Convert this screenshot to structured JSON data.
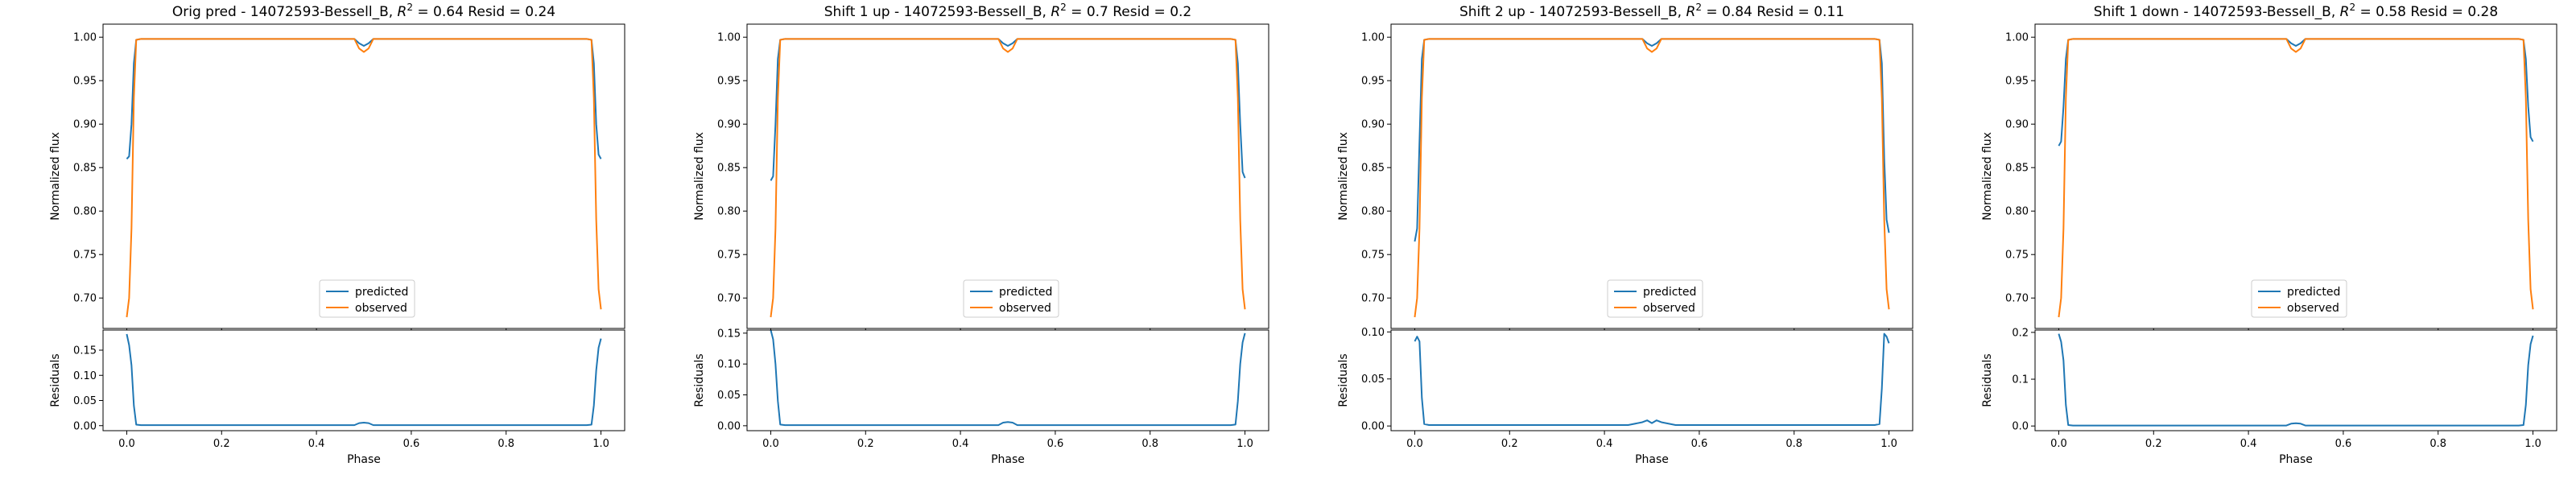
{
  "colors": {
    "predicted": "#1f77b4",
    "observed": "#ff7f0e"
  },
  "chart_data": [
    {
      "type": "line",
      "title": "Orig pred - 14072593-Bessell_B, $R^2 = 0.64$ Resid = 0.24",
      "top": {
        "ylabel": "Normalized flux",
        "ylim": [
          0.665,
          1.015
        ],
        "yticks": [
          0.7,
          0.75,
          0.8,
          0.85,
          0.9,
          0.95,
          1.0
        ],
        "yticklabels": [
          "0.70",
          "0.75",
          "0.80",
          "0.85",
          "0.90",
          "0.95",
          "1.00"
        ],
        "legend": {
          "placement": "lower center",
          "entries": [
            "predicted",
            "observed"
          ]
        },
        "series": [
          {
            "name": "predicted",
            "x": [
              0,
              0.005,
              0.01,
              0.015,
              0.02,
              0.03,
              0.48,
              0.49,
              0.5,
              0.51,
              0.52,
              0.97,
              0.98,
              0.985,
              0.99,
              0.995,
              1.0
            ],
            "y": [
              0.86,
              0.863,
              0.9,
              0.97,
              0.997,
              0.998,
              0.998,
              0.993,
              0.99,
              0.993,
              0.998,
              0.998,
              0.997,
              0.97,
              0.9,
              0.865,
              0.86
            ]
          },
          {
            "name": "observed",
            "x": [
              0,
              0.005,
              0.01,
              0.015,
              0.02,
              0.03,
              0.48,
              0.49,
              0.5,
              0.51,
              0.52,
              0.97,
              0.98,
              0.985,
              0.99,
              0.995,
              1.0
            ],
            "y": [
              0.678,
              0.7,
              0.78,
              0.93,
              0.997,
              0.998,
              0.998,
              0.987,
              0.983,
              0.987,
              0.998,
              0.998,
              0.997,
              0.93,
              0.79,
              0.71,
              0.687
            ]
          }
        ]
      },
      "bottom": {
        "ylabel": "Residuals",
        "xlabel": "Phase",
        "ylim": [
          -0.01,
          0.19
        ],
        "yticks": [
          0.0,
          0.05,
          0.1,
          0.15
        ],
        "yticklabels": [
          "0.00",
          "0.05",
          "0.10",
          "0.15"
        ],
        "xlim": [
          -0.05,
          1.05
        ],
        "xticks": [
          0.0,
          0.2,
          0.4,
          0.6,
          0.8,
          1.0
        ],
        "xticklabels": [
          "0.0",
          "0.2",
          "0.4",
          "0.6",
          "0.8",
          "1.0"
        ],
        "series": [
          {
            "name": "residuals",
            "x": [
              0,
              0.005,
              0.01,
              0.015,
              0.02,
              0.03,
              0.48,
              0.49,
              0.5,
              0.51,
              0.52,
              0.97,
              0.98,
              0.985,
              0.99,
              0.995,
              1.0
            ],
            "y": [
              0.182,
              0.16,
              0.12,
              0.04,
              0.002,
              0.001,
              0.001,
              0.005,
              0.006,
              0.005,
              0.001,
              0.001,
              0.002,
              0.04,
              0.11,
              0.155,
              0.173
            ]
          }
        ]
      }
    },
    {
      "type": "line",
      "title": "Shift 1 up - 14072593-Bessell_B, $R^2 = 0.7$ Resid = 0.2",
      "top": {
        "ylabel": "Normalized flux",
        "ylim": [
          0.665,
          1.015
        ],
        "yticks": [
          0.7,
          0.75,
          0.8,
          0.85,
          0.9,
          0.95,
          1.0
        ],
        "yticklabels": [
          "0.70",
          "0.75",
          "0.80",
          "0.85",
          "0.90",
          "0.95",
          "1.00"
        ],
        "legend": {
          "placement": "lower center",
          "entries": [
            "predicted",
            "observed"
          ]
        },
        "series": [
          {
            "name": "predicted",
            "x": [
              0,
              0.005,
              0.01,
              0.015,
              0.02,
              0.03,
              0.48,
              0.49,
              0.5,
              0.51,
              0.52,
              0.97,
              0.98,
              0.985,
              0.99,
              0.995,
              1.0
            ],
            "y": [
              0.835,
              0.84,
              0.9,
              0.975,
              0.997,
              0.998,
              0.998,
              0.993,
              0.99,
              0.993,
              0.998,
              0.998,
              0.997,
              0.97,
              0.9,
              0.845,
              0.838
            ]
          },
          {
            "name": "observed",
            "x": [
              0,
              0.005,
              0.01,
              0.015,
              0.02,
              0.03,
              0.48,
              0.49,
              0.5,
              0.51,
              0.52,
              0.97,
              0.98,
              0.985,
              0.99,
              0.995,
              1.0
            ],
            "y": [
              0.678,
              0.7,
              0.78,
              0.93,
              0.997,
              0.998,
              0.998,
              0.987,
              0.983,
              0.987,
              0.998,
              0.998,
              0.997,
              0.93,
              0.79,
              0.71,
              0.687
            ]
          }
        ]
      },
      "bottom": {
        "ylabel": "Residuals",
        "xlabel": "Phase",
        "ylim": [
          -0.008,
          0.155
        ],
        "yticks": [
          0.0,
          0.05,
          0.1,
          0.15
        ],
        "yticklabels": [
          "0.00",
          "0.05",
          "0.10",
          "0.15"
        ],
        "xlim": [
          -0.05,
          1.05
        ],
        "xticks": [
          0.0,
          0.2,
          0.4,
          0.6,
          0.8,
          1.0
        ],
        "xticklabels": [
          "0.0",
          "0.2",
          "0.4",
          "0.6",
          "0.8",
          "1.0"
        ],
        "series": [
          {
            "name": "residuals",
            "x": [
              0,
              0.005,
              0.01,
              0.015,
              0.02,
              0.03,
              0.48,
              0.49,
              0.5,
              0.51,
              0.52,
              0.97,
              0.98,
              0.985,
              0.99,
              0.995,
              1.0
            ],
            "y": [
              0.155,
              0.14,
              0.1,
              0.04,
              0.002,
              0.001,
              0.001,
              0.005,
              0.006,
              0.005,
              0.001,
              0.001,
              0.002,
              0.04,
              0.1,
              0.135,
              0.15
            ]
          }
        ]
      }
    },
    {
      "type": "line",
      "title": "Shift 2 up - 14072593-Bessell_B, $R^2 = 0.84$ Resid = 0.11",
      "top": {
        "ylabel": "Normalized flux",
        "ylim": [
          0.665,
          1.015
        ],
        "yticks": [
          0.7,
          0.75,
          0.8,
          0.85,
          0.9,
          0.95,
          1.0
        ],
        "yticklabels": [
          "0.70",
          "0.75",
          "0.80",
          "0.85",
          "0.90",
          "0.95",
          "1.00"
        ],
        "legend": {
          "placement": "lower center",
          "entries": [
            "predicted",
            "observed"
          ]
        },
        "series": [
          {
            "name": "predicted",
            "x": [
              0,
              0.005,
              0.01,
              0.015,
              0.02,
              0.03,
              0.48,
              0.49,
              0.5,
              0.51,
              0.52,
              0.97,
              0.98,
              0.985,
              0.99,
              0.995,
              1.0
            ],
            "y": [
              0.765,
              0.78,
              0.88,
              0.975,
              0.997,
              0.998,
              0.998,
              0.993,
              0.99,
              0.993,
              0.998,
              0.998,
              0.997,
              0.97,
              0.86,
              0.79,
              0.775
            ]
          },
          {
            "name": "observed",
            "x": [
              0,
              0.005,
              0.01,
              0.015,
              0.02,
              0.03,
              0.48,
              0.49,
              0.5,
              0.51,
              0.52,
              0.97,
              0.98,
              0.985,
              0.99,
              0.995,
              1.0
            ],
            "y": [
              0.678,
              0.7,
              0.78,
              0.93,
              0.997,
              0.998,
              0.998,
              0.987,
              0.983,
              0.987,
              0.998,
              0.998,
              0.997,
              0.93,
              0.79,
              0.71,
              0.687
            ]
          }
        ]
      },
      "bottom": {
        "ylabel": "Residuals",
        "xlabel": "Phase",
        "ylim": [
          -0.005,
          0.102
        ],
        "yticks": [
          0.0,
          0.05,
          0.1
        ],
        "yticklabels": [
          "0.00",
          "0.05",
          "0.10"
        ],
        "xlim": [
          -0.05,
          1.05
        ],
        "xticks": [
          0.0,
          0.2,
          0.4,
          0.6,
          0.8,
          1.0
        ],
        "xticklabels": [
          "0.0",
          "0.2",
          "0.4",
          "0.6",
          "0.8",
          "1.0"
        ],
        "series": [
          {
            "name": "residuals",
            "x": [
              0,
              0.005,
              0.01,
              0.015,
              0.02,
              0.03,
              0.45,
              0.48,
              0.49,
              0.5,
              0.51,
              0.52,
              0.55,
              0.97,
              0.98,
              0.985,
              0.99,
              0.995,
              1.0
            ],
            "y": [
              0.09,
              0.095,
              0.09,
              0.03,
              0.002,
              0.001,
              0.001,
              0.004,
              0.006,
              0.003,
              0.006,
              0.004,
              0.001,
              0.001,
              0.002,
              0.04,
              0.098,
              0.095,
              0.088
            ]
          }
        ]
      }
    },
    {
      "type": "line",
      "title": "Shift 1 down - 14072593-Bessell_B, $R^2 = 0.58$ Resid = 0.28",
      "top": {
        "ylabel": "Normalized flux",
        "ylim": [
          0.665,
          1.015
        ],
        "yticks": [
          0.7,
          0.75,
          0.8,
          0.85,
          0.9,
          0.95,
          1.0
        ],
        "yticklabels": [
          "0.70",
          "0.75",
          "0.80",
          "0.85",
          "0.90",
          "0.95",
          "1.00"
        ],
        "legend": {
          "placement": "lower center",
          "entries": [
            "predicted",
            "observed"
          ]
        },
        "series": [
          {
            "name": "predicted",
            "x": [
              0,
              0.005,
              0.01,
              0.015,
              0.02,
              0.03,
              0.48,
              0.49,
              0.5,
              0.51,
              0.52,
              0.97,
              0.98,
              0.985,
              0.99,
              0.995,
              1.0
            ],
            "y": [
              0.875,
              0.88,
              0.92,
              0.975,
              0.997,
              0.998,
              0.998,
              0.993,
              0.99,
              0.993,
              0.998,
              0.998,
              0.997,
              0.975,
              0.92,
              0.885,
              0.88
            ]
          },
          {
            "name": "observed",
            "x": [
              0,
              0.005,
              0.01,
              0.015,
              0.02,
              0.03,
              0.48,
              0.49,
              0.5,
              0.51,
              0.52,
              0.97,
              0.98,
              0.985,
              0.99,
              0.995,
              1.0
            ],
            "y": [
              0.678,
              0.7,
              0.78,
              0.93,
              0.997,
              0.998,
              0.998,
              0.987,
              0.983,
              0.987,
              0.998,
              0.998,
              0.997,
              0.93,
              0.79,
              0.71,
              0.687
            ]
          }
        ]
      },
      "bottom": {
        "ylabel": "Residuals",
        "xlabel": "Phase",
        "ylim": [
          -0.01,
          0.205
        ],
        "yticks": [
          0.0,
          0.1,
          0.2
        ],
        "yticklabels": [
          "0.0",
          "0.1",
          "0.2"
        ],
        "xlim": [
          -0.05,
          1.05
        ],
        "xticks": [
          0.0,
          0.2,
          0.4,
          0.6,
          0.8,
          1.0
        ],
        "xticklabels": [
          "0.0",
          "0.2",
          "0.4",
          "0.6",
          "0.8",
          "1.0"
        ],
        "series": [
          {
            "name": "residuals",
            "x": [
              0,
              0.005,
              0.01,
              0.015,
              0.02,
              0.03,
              0.48,
              0.49,
              0.5,
              0.51,
              0.52,
              0.97,
              0.98,
              0.985,
              0.99,
              0.995,
              1.0
            ],
            "y": [
              0.197,
              0.18,
              0.14,
              0.045,
              0.002,
              0.001,
              0.001,
              0.005,
              0.006,
              0.005,
              0.001,
              0.001,
              0.002,
              0.045,
              0.13,
              0.175,
              0.193
            ]
          }
        ]
      }
    }
  ]
}
